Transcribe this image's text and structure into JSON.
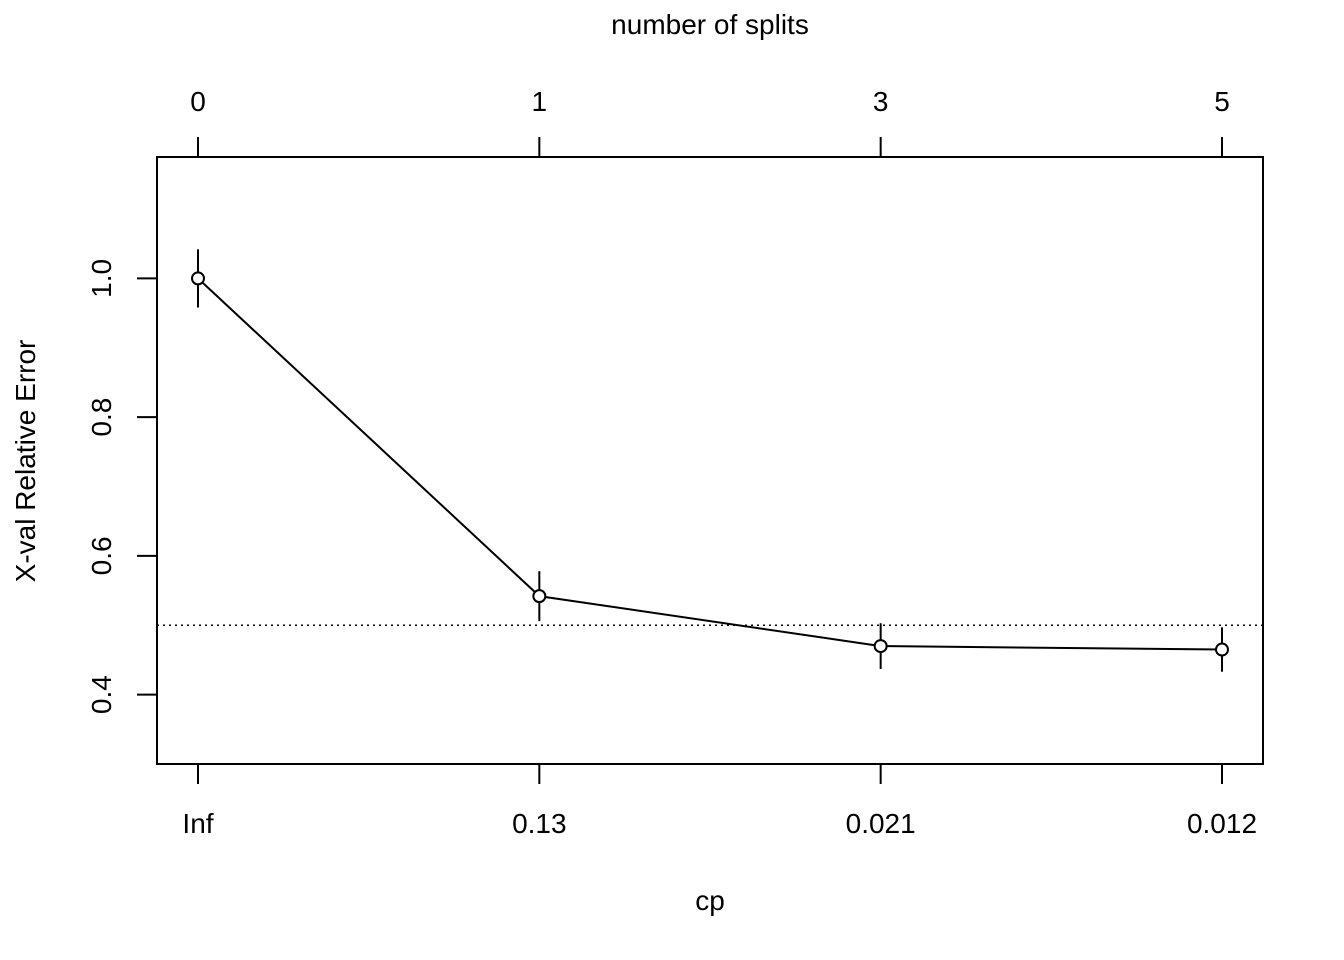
{
  "chart_data": {
    "type": "line",
    "title": "",
    "xlabel": "cp",
    "ylabel": "X-val Relative Error",
    "top_axis_title": "number of splits",
    "x_positions": [
      1,
      2,
      3,
      4
    ],
    "x_tick_labels": [
      "Inf",
      "0.13",
      "0.021",
      "0.012"
    ],
    "top_tick_labels": [
      "0",
      "1",
      "3",
      "5"
    ],
    "y": [
      1.0,
      0.542,
      0.47,
      0.465
    ],
    "y_error": [
      0.042,
      0.036,
      0.033,
      0.032
    ],
    "y_ticks": [
      0.4,
      0.6,
      0.8,
      1.0
    ],
    "y_tick_labels": [
      "0.4",
      "0.6",
      "0.8",
      "1.0"
    ],
    "ylim": [
      0.3,
      1.175
    ],
    "reference_line": 0.5,
    "grid": false,
    "marker": "open-circle"
  }
}
